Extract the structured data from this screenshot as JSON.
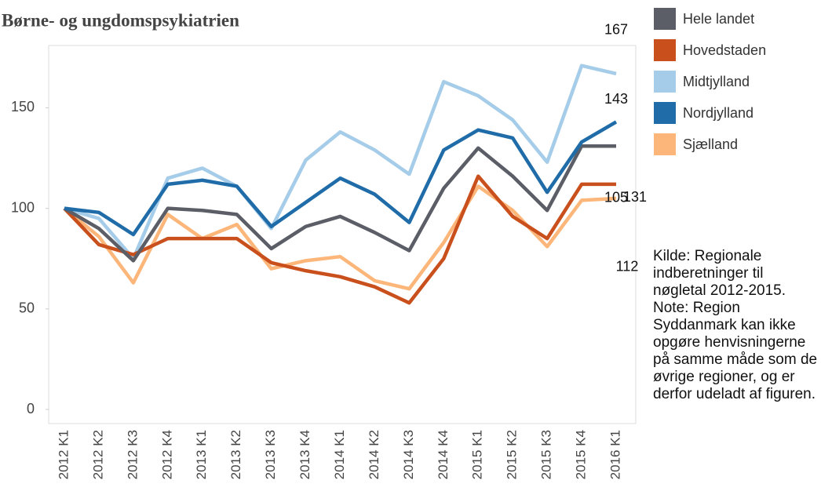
{
  "chart_data": {
    "type": "line",
    "title": "Børne- og ungdomspsykiatrien",
    "categories": [
      "2012 K1",
      "2012 K2",
      "2012 K3",
      "2012 K4",
      "2013 K1",
      "2013 K2",
      "2013 K3",
      "2013 K4",
      "2014 K1",
      "2014 K2",
      "2014 K3",
      "2014 K4",
      "2015 K1",
      "2015 K2",
      "2015 K3",
      "2015 K4",
      "2016 K1"
    ],
    "series": [
      {
        "name": "Hele landet",
        "color": "#5b5e66",
        "values": [
          100,
          90,
          74,
          100,
          99,
          97,
          80,
          91,
          96,
          88,
          79,
          110,
          130,
          116,
          99,
          131,
          131
        ]
      },
      {
        "name": "Hovedstaden",
        "color": "#c9501c",
        "values": [
          100,
          82,
          77,
          85,
          85,
          85,
          73,
          69,
          66,
          61,
          53,
          75,
          116,
          96,
          85,
          112,
          112
        ]
      },
      {
        "name": "Midtjylland",
        "color": "#a5cce8",
        "values": [
          100,
          95,
          75,
          115,
          120,
          111,
          90,
          124,
          138,
          129,
          117,
          163,
          156,
          144,
          123,
          171,
          167
        ]
      },
      {
        "name": "Nordjylland",
        "color": "#1f6ca8",
        "values": [
          100,
          98,
          87,
          112,
          114,
          111,
          91,
          103,
          115,
          107,
          93,
          129,
          139,
          135,
          108,
          133,
          143
        ]
      },
      {
        "name": "Sjælland",
        "color": "#fdb67a",
        "values": [
          100,
          86,
          63,
          97,
          85,
          92,
          70,
          74,
          76,
          64,
          60,
          83,
          111,
          99,
          81,
          104,
          105
        ]
      }
    ],
    "ylim": [
      -7,
      181
    ],
    "yticks": [
      0,
      50,
      100,
      150
    ],
    "note": "Kilde: Regionale indberetninger til nøgletal 2012-2015. Note: Region Syddanmark kan ikke opgøre henvisningerne på samme måde som de øvrige regioner, og er derfor udeladt af figuren."
  }
}
